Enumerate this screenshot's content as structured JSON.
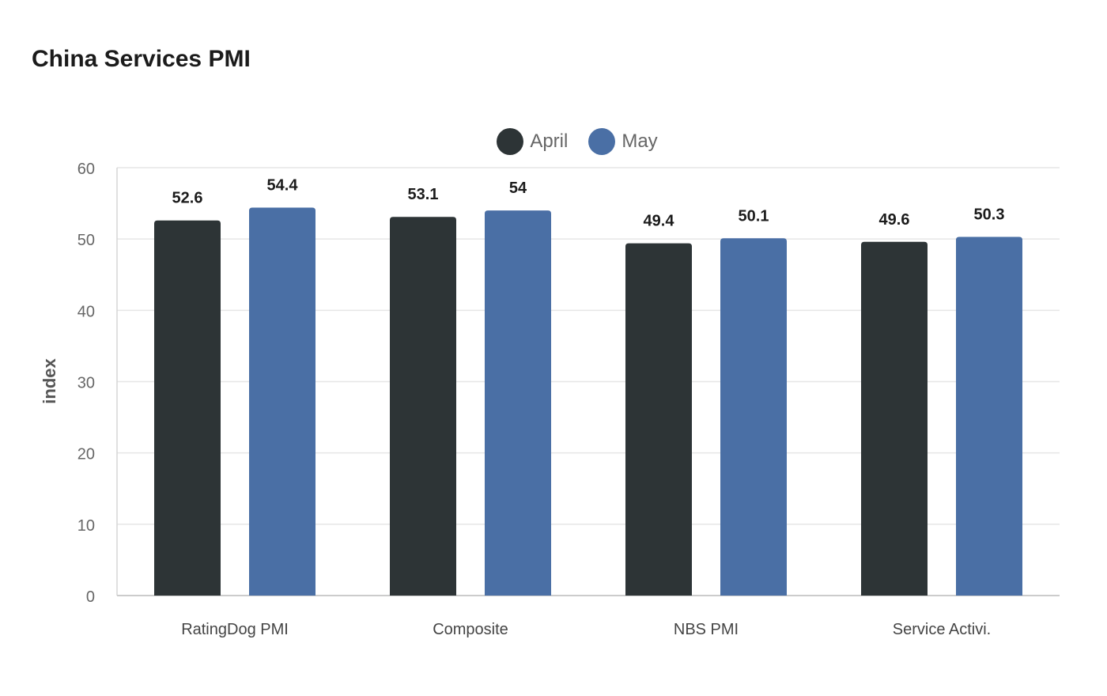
{
  "chart_data": {
    "type": "bar",
    "title": "China Services PMI",
    "xlabel": "",
    "ylabel": "index",
    "categories": [
      "RatingDog PMI",
      "Composite",
      "NBS PMI",
      "Service Activi."
    ],
    "series": [
      {
        "name": "April",
        "color": "#2d3436",
        "values": [
          52.6,
          53.1,
          49.4,
          49.6
        ]
      },
      {
        "name": "May",
        "color": "#4a6fa5",
        "values": [
          54.4,
          54,
          50.1,
          50.3
        ]
      }
    ],
    "ylim": [
      0,
      60
    ],
    "yticks": [
      0,
      10,
      20,
      30,
      40,
      50,
      60
    ],
    "grid": true,
    "legend_position": "top-center",
    "data_labels": true
  }
}
